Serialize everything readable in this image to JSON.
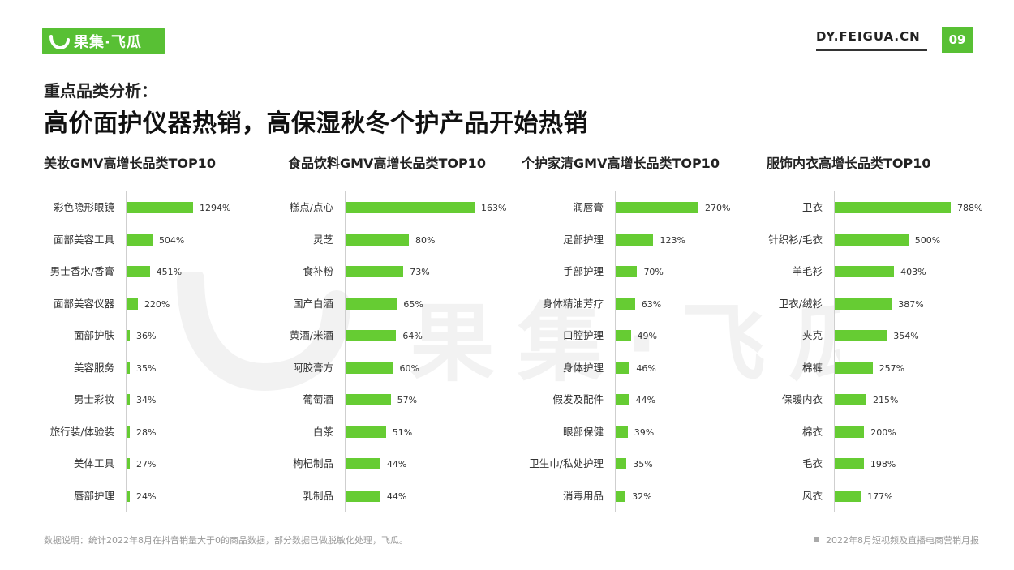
{
  "header": {
    "logo_text": "果集·飞瓜",
    "site": "DY.FEIGUA.CN",
    "page_number": "09",
    "brand_color": "#58c034"
  },
  "subtitle": "重点品类分析：",
  "title": "高价面护仪器热销，高保湿秋冬个护产品开始热销",
  "watermark_text": "果 集 · 飞 瓜",
  "footer": {
    "note": "数据说明：统计2022年8月在抖音销量大于0的商品数据，部分数据已做脱敏化处理，飞瓜。",
    "report": "2022年8月短视频及直播电商营销月报"
  },
  "chart_data": [
    {
      "type": "bar",
      "orientation": "horizontal",
      "title": "美妆GMV高增长品类TOP10",
      "categories": [
        "彩色隐形眼镜",
        "面部美容工具",
        "男士香水/香膏",
        "面部美容仪器",
        "面部护肤",
        "美容服务",
        "男士彩妆",
        "旅行装/体验装",
        "美体工具",
        "唇部护理"
      ],
      "values": [
        1294,
        504,
        451,
        220,
        36,
        35,
        34,
        28,
        27,
        24
      ],
      "labels": [
        "1294%",
        "504%",
        "451%",
        "220%",
        "36%",
        "35%",
        "34%",
        "28%",
        "27%",
        "24%"
      ],
      "unit": "%"
    },
    {
      "type": "bar",
      "orientation": "horizontal",
      "title": "食品饮料GMV高增长品类TOP10",
      "categories": [
        "糕点/点心",
        "灵芝",
        "食补粉",
        "国产白酒",
        "黄酒/米酒",
        "阿胶膏方",
        "葡萄酒",
        "白茶",
        "枸杞制品",
        "乳制品"
      ],
      "values": [
        163,
        80,
        73,
        65,
        64,
        60,
        57,
        51,
        44,
        44
      ],
      "labels": [
        "163%",
        "80%",
        "73%",
        "65%",
        "64%",
        "60%",
        "57%",
        "51%",
        "44%",
        "44%"
      ],
      "unit": "%"
    },
    {
      "type": "bar",
      "orientation": "horizontal",
      "title": "个护家清GMV高增长品类TOP10",
      "categories": [
        "润唇膏",
        "足部护理",
        "手部护理",
        "身体精油芳疗",
        "口腔护理",
        "身体护理",
        "假发及配件",
        "眼部保健",
        "卫生巾/私处护理",
        "消毒用品"
      ],
      "values": [
        270,
        123,
        70,
        63,
        49,
        46,
        44,
        39,
        35,
        32
      ],
      "labels": [
        "270%",
        "123%",
        "70%",
        "63%",
        "49%",
        "46%",
        "44%",
        "39%",
        "35%",
        "32%"
      ],
      "unit": "%"
    },
    {
      "type": "bar",
      "orientation": "horizontal",
      "title": "服饰内衣高增长品类TOP10",
      "categories": [
        "卫衣",
        "针织衫/毛衣",
        "羊毛衫",
        "卫衣/绒衫",
        "夹克",
        "棉裤",
        "保暖内衣",
        "棉衣",
        "毛衣",
        "风衣"
      ],
      "values": [
        788,
        500,
        403,
        387,
        354,
        257,
        215,
        200,
        198,
        177
      ],
      "labels": [
        "788%",
        "500%",
        "403%",
        "387%",
        "354%",
        "257%",
        "215%",
        "200%",
        "198%",
        "177%"
      ],
      "unit": "%"
    }
  ]
}
